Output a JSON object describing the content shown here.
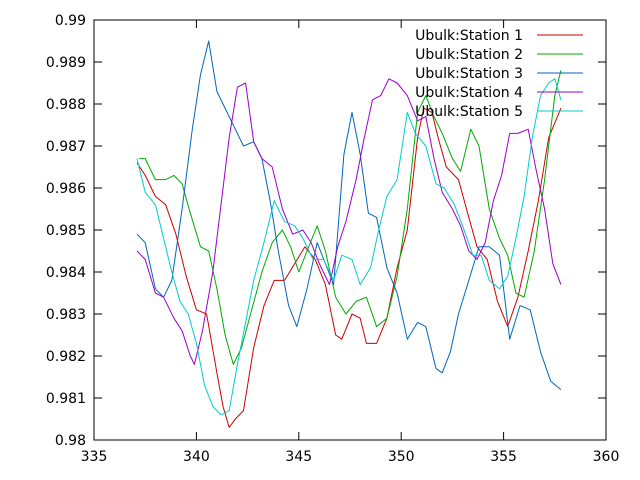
{
  "chart_data": {
    "type": "line",
    "title": "",
    "xlabel": "",
    "ylabel": "",
    "xlim": [
      335,
      360
    ],
    "ylim": [
      0.98,
      0.99
    ],
    "xticks": [
      335,
      340,
      345,
      350,
      355,
      360
    ],
    "yticks": [
      0.98,
      0.981,
      0.982,
      0.983,
      0.984,
      0.985,
      0.986,
      0.987,
      0.988,
      0.989,
      0.99
    ],
    "xtick_labels": [
      "335",
      "340",
      "345",
      "350",
      "355",
      "360"
    ],
    "ytick_labels": [
      "0.98",
      "0.981",
      "0.982",
      "0.983",
      "0.984",
      "0.985",
      "0.986",
      "0.987",
      "0.988",
      "0.989",
      "0.99"
    ],
    "grid": false,
    "legend_position": "top-right",
    "series": [
      {
        "name": "Ubulk:Station 1",
        "color": "#cc0000",
        "points": [
          [
            337.1,
            0.9866
          ],
          [
            337.5,
            0.9863
          ],
          [
            338.0,
            0.9858
          ],
          [
            338.5,
            0.9856
          ],
          [
            339.0,
            0.9849
          ],
          [
            339.5,
            0.9839
          ],
          [
            340.0,
            0.9831
          ],
          [
            340.5,
            0.983
          ],
          [
            341.0,
            0.9816
          ],
          [
            341.3,
            0.9808
          ],
          [
            341.6,
            0.9803
          ],
          [
            341.9,
            0.9805
          ],
          [
            342.3,
            0.9807
          ],
          [
            342.8,
            0.9822
          ],
          [
            343.3,
            0.9832
          ],
          [
            343.8,
            0.9838
          ],
          [
            344.3,
            0.9838
          ],
          [
            344.8,
            0.9842
          ],
          [
            345.3,
            0.9846
          ],
          [
            345.8,
            0.9843
          ],
          [
            346.3,
            0.9837
          ],
          [
            346.8,
            0.9825
          ],
          [
            347.1,
            0.9824
          ],
          [
            347.6,
            0.983
          ],
          [
            348.0,
            0.9829
          ],
          [
            348.3,
            0.9823
          ],
          [
            348.8,
            0.9823
          ],
          [
            349.3,
            0.9829
          ],
          [
            349.8,
            0.9841
          ],
          [
            350.3,
            0.985
          ],
          [
            350.8,
            0.9872
          ],
          [
            351.1,
            0.9879
          ],
          [
            351.5,
            0.9878
          ],
          [
            351.8,
            0.9872
          ],
          [
            352.2,
            0.9865
          ],
          [
            352.8,
            0.9862
          ],
          [
            353.3,
            0.9853
          ],
          [
            353.7,
            0.9846
          ],
          [
            354.2,
            0.9843
          ],
          [
            354.7,
            0.9833
          ],
          [
            355.2,
            0.9827
          ],
          [
            355.7,
            0.9834
          ],
          [
            356.2,
            0.9845
          ],
          [
            356.7,
            0.9857
          ],
          [
            357.2,
            0.9872
          ],
          [
            357.8,
            0.9879
          ]
        ]
      },
      {
        "name": "Ubulk:Station 2",
        "color": "#00aa00",
        "points": [
          [
            337.2,
            0.9867
          ],
          [
            337.5,
            0.9867
          ],
          [
            338.0,
            0.9862
          ],
          [
            338.5,
            0.9862
          ],
          [
            338.9,
            0.9863
          ],
          [
            339.3,
            0.9861
          ],
          [
            339.7,
            0.9854
          ],
          [
            340.2,
            0.9846
          ],
          [
            340.6,
            0.9845
          ],
          [
            341.0,
            0.9836
          ],
          [
            341.4,
            0.9825
          ],
          [
            341.8,
            0.9818
          ],
          [
            342.2,
            0.9822
          ],
          [
            342.7,
            0.9831
          ],
          [
            343.2,
            0.984
          ],
          [
            343.7,
            0.9847
          ],
          [
            344.2,
            0.985
          ],
          [
            344.6,
            0.9846
          ],
          [
            345.0,
            0.984
          ],
          [
            345.4,
            0.9845
          ],
          [
            345.9,
            0.9851
          ],
          [
            346.3,
            0.9845
          ],
          [
            346.8,
            0.9834
          ],
          [
            347.3,
            0.983
          ],
          [
            347.8,
            0.9833
          ],
          [
            348.3,
            0.9834
          ],
          [
            348.8,
            0.9827
          ],
          [
            349.3,
            0.9829
          ],
          [
            349.8,
            0.9839
          ],
          [
            350.3,
            0.9855
          ],
          [
            350.8,
            0.9878
          ],
          [
            351.2,
            0.9882
          ],
          [
            351.6,
            0.9877
          ],
          [
            352.0,
            0.9873
          ],
          [
            352.5,
            0.9867
          ],
          [
            352.9,
            0.9864
          ],
          [
            353.4,
            0.9874
          ],
          [
            353.8,
            0.987
          ],
          [
            354.3,
            0.9855
          ],
          [
            354.8,
            0.9848
          ],
          [
            355.2,
            0.9844
          ],
          [
            355.6,
            0.9835
          ],
          [
            356.0,
            0.9834
          ],
          [
            356.5,
            0.9845
          ],
          [
            357.0,
            0.9862
          ],
          [
            357.5,
            0.9882
          ],
          [
            357.8,
            0.9888
          ]
        ]
      },
      {
        "name": "Ubulk:Station 3",
        "color": "#0066bb",
        "points": [
          [
            337.1,
            0.9849
          ],
          [
            337.5,
            0.9847
          ],
          [
            338.0,
            0.9836
          ],
          [
            338.4,
            0.9834
          ],
          [
            338.8,
            0.9838
          ],
          [
            339.3,
            0.9855
          ],
          [
            339.8,
            0.9874
          ],
          [
            340.2,
            0.9887
          ],
          [
            340.6,
            0.9895
          ],
          [
            341.0,
            0.9883
          ],
          [
            341.5,
            0.9878
          ],
          [
            341.9,
            0.9874
          ],
          [
            342.3,
            0.987
          ],
          [
            342.8,
            0.9871
          ],
          [
            343.2,
            0.9867
          ],
          [
            343.6,
            0.9857
          ],
          [
            344.0,
            0.9845
          ],
          [
            344.5,
            0.9832
          ],
          [
            344.9,
            0.9827
          ],
          [
            345.4,
            0.9836
          ],
          [
            345.9,
            0.9847
          ],
          [
            346.3,
            0.9842
          ],
          [
            346.7,
            0.9837
          ],
          [
            347.2,
            0.9868
          ],
          [
            347.6,
            0.9878
          ],
          [
            348.0,
            0.9868
          ],
          [
            348.4,
            0.9854
          ],
          [
            348.8,
            0.9853
          ],
          [
            349.3,
            0.9841
          ],
          [
            349.8,
            0.9835
          ],
          [
            350.3,
            0.9824
          ],
          [
            350.8,
            0.9828
          ],
          [
            351.2,
            0.9827
          ],
          [
            351.7,
            0.9817
          ],
          [
            352.0,
            0.9816
          ],
          [
            352.4,
            0.9821
          ],
          [
            352.8,
            0.983
          ],
          [
            353.3,
            0.9838
          ],
          [
            353.8,
            0.9846
          ],
          [
            354.3,
            0.9846
          ],
          [
            354.8,
            0.9844
          ],
          [
            355.3,
            0.9824
          ],
          [
            355.8,
            0.9832
          ],
          [
            356.3,
            0.9831
          ],
          [
            356.8,
            0.9821
          ],
          [
            357.3,
            0.9814
          ],
          [
            357.8,
            0.9812
          ]
        ]
      },
      {
        "name": "Ubulk:Station 4",
        "color": "#9900cc",
        "points": [
          [
            337.1,
            0.9845
          ],
          [
            337.5,
            0.9843
          ],
          [
            338.0,
            0.9835
          ],
          [
            338.4,
            0.9834
          ],
          [
            338.9,
            0.9829
          ],
          [
            339.3,
            0.9826
          ],
          [
            339.7,
            0.982
          ],
          [
            339.9,
            0.9818
          ],
          [
            340.3,
            0.9826
          ],
          [
            340.8,
            0.984
          ],
          [
            341.2,
            0.9856
          ],
          [
            341.6,
            0.9872
          ],
          [
            342.0,
            0.9884
          ],
          [
            342.4,
            0.9885
          ],
          [
            342.8,
            0.9871
          ],
          [
            343.2,
            0.9867
          ],
          [
            343.7,
            0.9865
          ],
          [
            344.2,
            0.9855
          ],
          [
            344.7,
            0.9849
          ],
          [
            345.2,
            0.985
          ],
          [
            345.6,
            0.9847
          ],
          [
            346.0,
            0.9842
          ],
          [
            346.5,
            0.9837
          ],
          [
            346.9,
            0.9846
          ],
          [
            347.3,
            0.9852
          ],
          [
            347.8,
            0.9862
          ],
          [
            348.2,
            0.9872
          ],
          [
            348.6,
            0.9881
          ],
          [
            349.0,
            0.9882
          ],
          [
            349.4,
            0.9886
          ],
          [
            349.8,
            0.9885
          ],
          [
            350.3,
            0.9882
          ],
          [
            350.8,
            0.9876
          ],
          [
            351.2,
            0.9877
          ],
          [
            351.6,
            0.9867
          ],
          [
            352.0,
            0.9859
          ],
          [
            352.5,
            0.9855
          ],
          [
            352.9,
            0.9851
          ],
          [
            353.3,
            0.9845
          ],
          [
            353.7,
            0.9843
          ],
          [
            354.1,
            0.9847
          ],
          [
            354.5,
            0.9857
          ],
          [
            354.9,
            0.9863
          ],
          [
            355.3,
            0.9873
          ],
          [
            355.7,
            0.9873
          ],
          [
            356.2,
            0.9874
          ],
          [
            356.6,
            0.9864
          ],
          [
            357.0,
            0.9855
          ],
          [
            357.4,
            0.9842
          ],
          [
            357.8,
            0.9837
          ]
        ]
      },
      {
        "name": "Ubulk:Station 5",
        "color": "#00cccc",
        "points": [
          [
            337.1,
            0.9867
          ],
          [
            337.5,
            0.9859
          ],
          [
            338.0,
            0.9856
          ],
          [
            338.4,
            0.9848
          ],
          [
            338.8,
            0.984
          ],
          [
            339.2,
            0.9833
          ],
          [
            339.6,
            0.983
          ],
          [
            340.0,
            0.9823
          ],
          [
            340.4,
            0.9813
          ],
          [
            340.8,
            0.9808
          ],
          [
            341.2,
            0.9806
          ],
          [
            341.6,
            0.9807
          ],
          [
            342.0,
            0.9818
          ],
          [
            342.4,
            0.9828
          ],
          [
            342.8,
            0.9838
          ],
          [
            343.3,
            0.9847
          ],
          [
            343.8,
            0.9857
          ],
          [
            344.3,
            0.9852
          ],
          [
            344.8,
            0.9851
          ],
          [
            345.2,
            0.9848
          ],
          [
            345.7,
            0.9843
          ],
          [
            346.2,
            0.9843
          ],
          [
            346.7,
            0.9838
          ],
          [
            347.1,
            0.9844
          ],
          [
            347.6,
            0.9843
          ],
          [
            348.0,
            0.9837
          ],
          [
            348.5,
            0.9841
          ],
          [
            348.9,
            0.985
          ],
          [
            349.3,
            0.9858
          ],
          [
            349.8,
            0.9862
          ],
          [
            350.3,
            0.9878
          ],
          [
            350.7,
            0.9873
          ],
          [
            351.2,
            0.987
          ],
          [
            351.7,
            0.9861
          ],
          [
            352.1,
            0.986
          ],
          [
            352.6,
            0.9856
          ],
          [
            353.0,
            0.9851
          ],
          [
            353.5,
            0.9844
          ],
          [
            353.9,
            0.9844
          ],
          [
            354.3,
            0.9838
          ],
          [
            354.8,
            0.9836
          ],
          [
            355.2,
            0.9839
          ],
          [
            355.6,
            0.9848
          ],
          [
            356.0,
            0.9858
          ],
          [
            356.4,
            0.9872
          ],
          [
            356.8,
            0.9882
          ],
          [
            357.2,
            0.9885
          ],
          [
            357.5,
            0.9886
          ],
          [
            357.8,
            0.9881
          ]
        ]
      }
    ]
  }
}
